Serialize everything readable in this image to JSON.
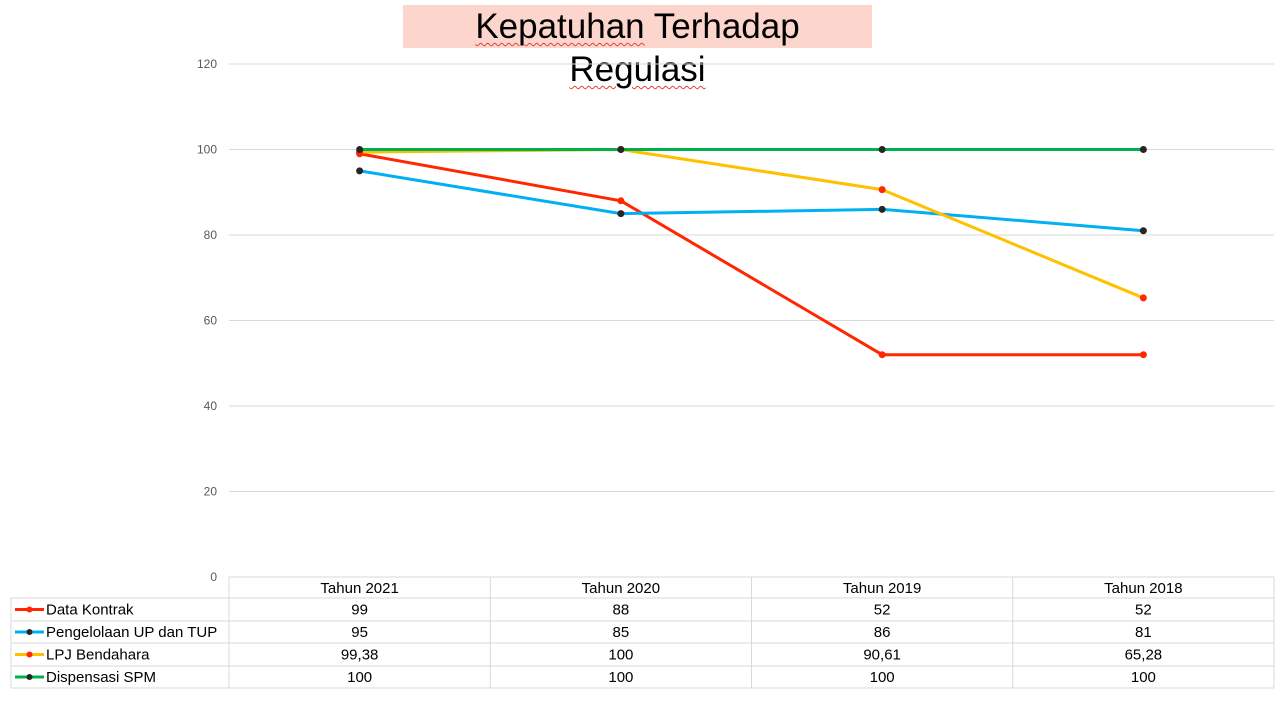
{
  "chart_data": {
    "type": "line",
    "title_parts": [
      "Kepatuhan",
      " Terhadap ",
      "Regulasi"
    ],
    "title": "Kepatuhan Terhadap Regulasi",
    "categories": [
      "Tahun 2021",
      "Tahun 2020",
      "Tahun 2019",
      "Tahun 2018"
    ],
    "ylim": [
      0,
      120
    ],
    "yticks": [
      "0",
      "20",
      "40",
      "60",
      "80",
      "100",
      "120"
    ],
    "grid": true,
    "legend": "data-table-bottom",
    "series": [
      {
        "name": "Data Kontrak",
        "values": [
          99,
          88,
          52,
          52
        ],
        "labels": [
          "99",
          "88",
          "52",
          "52"
        ],
        "color": "#ff2600",
        "marker": "#ff2600"
      },
      {
        "name": "Pengelolaan UP dan TUP",
        "values": [
          95,
          85,
          86,
          81
        ],
        "labels": [
          "95",
          "85",
          "86",
          "81"
        ],
        "color": "#00b0f0",
        "marker": "#262626"
      },
      {
        "name": "LPJ Bendahara",
        "values": [
          99.38,
          100,
          90.61,
          65.28
        ],
        "labels": [
          "99,38",
          "100",
          "90,61",
          "65,28"
        ],
        "color": "#ffc000",
        "marker": "#ff2600"
      },
      {
        "name": "Dispensasi SPM",
        "values": [
          100,
          100,
          100,
          100
        ],
        "labels": [
          "100",
          "100",
          "100",
          "100"
        ],
        "color": "#00b050",
        "marker": "#262626"
      }
    ]
  }
}
